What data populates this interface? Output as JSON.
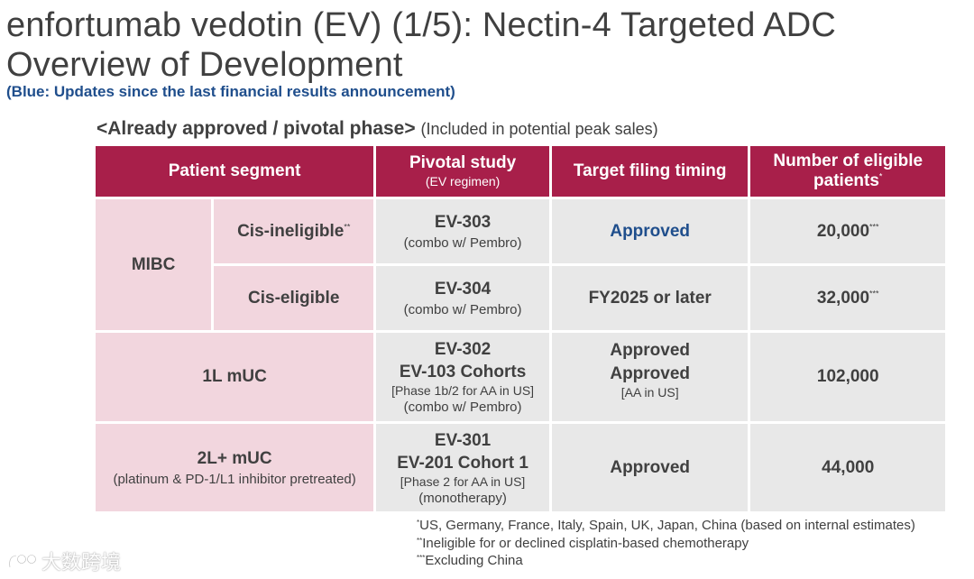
{
  "header": {
    "title_line1": "enfortumab vedotin (EV) (1/5): Nectin-4 Targeted ADC",
    "title_line2": "Overview of Development",
    "subtitle": "(Blue: Updates since the last financial results announcement)"
  },
  "section": {
    "label": "<Already approved / pivotal phase>",
    "note": "(Included in potential peak sales)"
  },
  "table": {
    "headers": {
      "segment": "Patient segment",
      "study": "Pivotal study",
      "study_sub": "(EV regimen)",
      "filing": "Target filing timing",
      "patients_line1": "Number of eligible",
      "patients_line2": "patients",
      "patients_mark": "*"
    },
    "rows": [
      {
        "group": "MIBC",
        "sub": "Cis-ineligible",
        "sub_mark": "**",
        "study": "EV-303",
        "study_note": "(combo w/ Pembro)",
        "filing": "Approved",
        "patients": "20,000",
        "patients_mark": "***"
      },
      {
        "sub": "Cis-eligible",
        "study": "EV-304",
        "study_note": "(combo w/ Pembro)",
        "filing": "FY2025 or later",
        "patients": "32,000",
        "patients_mark": "***"
      },
      {
        "segment": "1L mUC",
        "study1": "EV-302",
        "study2": "EV-103 Cohorts",
        "study_note1": "[Phase 1b/2 for AA in US]",
        "study_note2": "(combo w/ Pembro)",
        "filing1": "Approved",
        "filing2": "Approved",
        "filing_note": "[AA in US]",
        "patients": "102,000"
      },
      {
        "segment": "2L+ mUC",
        "segment_note": "(platinum & PD-1/L1 inhibitor pretreated)",
        "study1": "EV-301",
        "study2": "EV-201 Cohort 1",
        "study_note1": "[Phase 2 for AA in US]",
        "study_note2": "(monotherapy)",
        "filing": "Approved",
        "patients": "44,000"
      }
    ]
  },
  "footnotes": [
    {
      "mark": "*",
      "text": "US, Germany, France, Italy, Spain, UK, Japan, China (based on internal estimates)"
    },
    {
      "mark": "**",
      "text": "Ineligible for or declined cisplatin-based chemotherapy"
    },
    {
      "mark": "***",
      "text": "Excluding China"
    }
  ],
  "watermark": {
    "text": "大数跨境",
    "icon": "logo-mark-icon"
  },
  "colors": {
    "header_bg": "#a81f4a",
    "segment_bg": "#f2d6de",
    "cell_bg": "#e8e8e8",
    "update_blue": "#1f4e8c"
  }
}
